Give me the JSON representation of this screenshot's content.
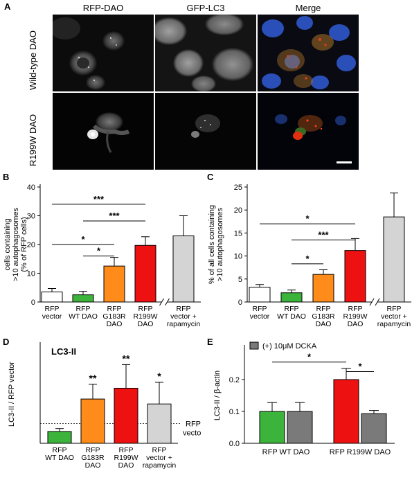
{
  "panel_a": {
    "letter": "A",
    "columns": [
      "RFP-DAO",
      "GFP-LC3",
      "Merge"
    ],
    "rows": [
      "Wild-type DAO",
      "R199W DAO"
    ]
  },
  "chart_data": [
    {
      "id": "B",
      "letter": "B",
      "type": "bar",
      "ylabel_lines": [
        "cells containing",
        ">10 autophagosomes",
        "(% of RFP cells)"
      ],
      "ylim": [
        0,
        40
      ],
      "yticks": [
        0,
        10,
        20,
        30,
        40
      ],
      "categories": [
        [
          "RFP",
          "vector"
        ],
        [
          "RFP",
          "WT DAO"
        ],
        [
          "RFP",
          "G183R",
          "DAO"
        ],
        [
          "RFP",
          "R199W",
          "DAO"
        ],
        [
          "RFP",
          "vector +",
          "rapamycin"
        ]
      ],
      "values": [
        3.5,
        2.5,
        12.5,
        19.7,
        23
      ],
      "errors": [
        1.2,
        1.2,
        3,
        3,
        7
      ],
      "colors": [
        "#ffffff",
        "#3cb43c",
        "#ff8c1a",
        "#ee1111",
        "#d4d4d4"
      ],
      "axis_break_after": 3,
      "significance": [
        {
          "from": 0,
          "to": 3,
          "label": "***",
          "y": 34
        },
        {
          "from": 1,
          "to": 3,
          "label": "***",
          "y": 28.2
        },
        {
          "from": 0,
          "to": 2,
          "label": "*",
          "y": 20
        },
        {
          "from": 1,
          "to": 2,
          "label": "*",
          "y": 16
        }
      ]
    },
    {
      "id": "C",
      "letter": "C",
      "type": "bar",
      "ylabel_lines": [
        "% of all cells containing",
        ">10 autophagosomes"
      ],
      "ylim": [
        0,
        25
      ],
      "yticks": [
        0,
        5,
        10,
        15,
        20,
        25
      ],
      "categories": [
        [
          "RFP",
          "vector"
        ],
        [
          "RFP",
          "WT DAO"
        ],
        [
          "RFP",
          "G183R",
          "DAO"
        ],
        [
          "RFP",
          "R199W",
          "DAO"
        ],
        [
          "RFP",
          "vector +",
          "rapamycin"
        ]
      ],
      "values": [
        3.2,
        2,
        6,
        11.2,
        18.5
      ],
      "errors": [
        0.6,
        0.6,
        1,
        2.6,
        5.2
      ],
      "colors": [
        "#ffffff",
        "#3cb43c",
        "#ff8c1a",
        "#ee1111",
        "#d4d4d4"
      ],
      "axis_break_after": 3,
      "significance": [
        {
          "from": 0,
          "to": 3,
          "label": "*",
          "y": 17
        },
        {
          "from": 1,
          "to": 3,
          "label": "***",
          "y": 13.5
        },
        {
          "from": 1,
          "to": 2,
          "label": "*",
          "y": 8.3
        }
      ]
    },
    {
      "id": "D",
      "letter": "D",
      "type": "bar",
      "title": "LC3-II",
      "ylabel_lines": [
        "LC3-II / RFP vector"
      ],
      "ylim": [
        0,
        5
      ],
      "yticks": [],
      "categories": [
        [
          "RFP",
          "WT DAO"
        ],
        [
          "RFP",
          "G183R",
          "DAO"
        ],
        [
          "RFP",
          "R199W",
          "DAO"
        ],
        [
          "RFP",
          "vector +",
          "rapamycin"
        ]
      ],
      "values": [
        0.6,
        2.25,
        2.8,
        2.0
      ],
      "errors": [
        0.15,
        0.75,
        1.2,
        1.1
      ],
      "colors": [
        "#3cb43c",
        "#ff8c1a",
        "#ee1111",
        "#d4d4d4"
      ],
      "bar_stars": [
        "",
        "**",
        "**",
        "*"
      ],
      "reference_line": {
        "y": 1,
        "label_lines": [
          "RFP",
          "vector"
        ]
      }
    },
    {
      "id": "E",
      "letter": "E",
      "type": "bar",
      "ylabel_lines": [
        "LC3-II / β-actin"
      ],
      "ylim": [
        0,
        0.3
      ],
      "yticks": [
        0.0,
        0.1,
        0.2
      ],
      "ytick_labels": [
        "0.0",
        "0.1",
        "0.2"
      ],
      "legend": {
        "label": "(+) 10μM DCKA",
        "color": "#7a7a7a",
        "position": "top-left"
      },
      "groups": [
        "RFP WT DAO",
        "RFP R199W DAO"
      ],
      "bars": [
        {
          "group": 0,
          "value": 0.1,
          "error": 0.028,
          "color": "#3cb43c"
        },
        {
          "group": 0,
          "value": 0.1,
          "error": 0.028,
          "color": "#7a7a7a"
        },
        {
          "group": 1,
          "value": 0.2,
          "error": 0.035,
          "color": "#ee1111"
        },
        {
          "group": 1,
          "value": 0.093,
          "error": 0.01,
          "color": "#7a7a7a"
        }
      ],
      "significance": [
        {
          "from": 0,
          "to": 2,
          "label": "*",
          "y": 0.255
        },
        {
          "from": 2,
          "to": 3,
          "label": "*",
          "y": 0.225
        }
      ]
    }
  ]
}
